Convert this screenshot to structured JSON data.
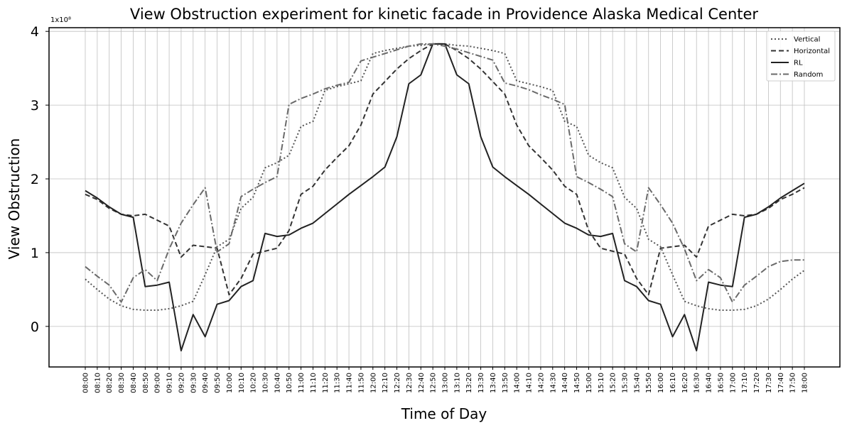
{
  "chart_data": {
    "type": "line",
    "title": "View Obstruction experiment for kinetic facade in Providence Alaska Medical Center",
    "xlabel": "Time of Day",
    "ylabel": "View Obstruction",
    "y_scale_label": "1x10⁸",
    "y_ticks": [
      "0",
      "1",
      "2",
      "3",
      "4"
    ],
    "ylim": [
      -0.55,
      4.05
    ],
    "grid": true,
    "legend_position": "top-right",
    "categories": [
      "08:00",
      "08:10",
      "08:20",
      "08:30",
      "08:40",
      "08:50",
      "09:00",
      "09:10",
      "09:20",
      "09:30",
      "09:40",
      "09:50",
      "10:00",
      "10:10",
      "10:20",
      "10:30",
      "10:40",
      "10:50",
      "11:00",
      "11:10",
      "11:20",
      "11:30",
      "11:40",
      "11:50",
      "12:00",
      "12:10",
      "12:20",
      "12:30",
      "12:40",
      "12:50",
      "13:00",
      "13:10",
      "13:20",
      "13:30",
      "13:40",
      "13:50",
      "14:00",
      "14:10",
      "14:20",
      "14:30",
      "14:40",
      "14:50",
      "15:00",
      "15:10",
      "15:20",
      "15:30",
      "15:40",
      "15:50",
      "16:00",
      "16:10",
      "16:20",
      "16:30",
      "16:40",
      "16:50",
      "17:00",
      "17:10",
      "17:20",
      "17:30",
      "17:40",
      "17:50",
      "18:00"
    ],
    "series": [
      {
        "name": "Vertical",
        "color": "#555555",
        "dash": "2,3",
        "values": [
          0.64,
          0.5,
          0.37,
          0.28,
          0.23,
          0.22,
          0.22,
          0.24,
          0.28,
          0.34,
          0.7,
          1.08,
          1.18,
          1.6,
          1.75,
          2.15,
          2.22,
          2.32,
          2.71,
          2.78,
          3.2,
          3.25,
          3.29,
          3.33,
          3.7,
          3.74,
          3.77,
          3.8,
          3.81,
          3.83,
          3.83,
          3.81,
          3.8,
          3.77,
          3.74,
          3.7,
          3.33,
          3.29,
          3.25,
          3.2,
          2.78,
          2.71,
          2.32,
          2.22,
          2.15,
          1.75,
          1.6,
          1.18,
          1.08,
          0.7,
          0.34,
          0.28,
          0.24,
          0.22,
          0.22,
          0.23,
          0.28,
          0.37,
          0.5,
          0.64,
          0.76
        ]
      },
      {
        "name": "Horizontal",
        "color": "#333333",
        "dash": "7,4",
        "values": [
          1.79,
          1.72,
          1.6,
          1.52,
          1.5,
          1.52,
          1.44,
          1.36,
          0.94,
          1.1,
          1.08,
          1.06,
          0.43,
          0.65,
          0.98,
          1.02,
          1.06,
          1.3,
          1.79,
          1.9,
          2.12,
          2.29,
          2.45,
          2.73,
          3.15,
          3.32,
          3.49,
          3.63,
          3.74,
          3.83,
          3.83,
          3.74,
          3.63,
          3.49,
          3.32,
          3.15,
          2.73,
          2.45,
          2.29,
          2.12,
          1.9,
          1.79,
          1.3,
          1.06,
          1.02,
          0.98,
          0.65,
          0.43,
          1.06,
          1.08,
          1.1,
          0.94,
          1.36,
          1.44,
          1.52,
          1.5,
          1.52,
          1.6,
          1.72,
          1.79,
          1.88
        ]
      },
      {
        "name": "RL",
        "color": "#222222",
        "dash": "",
        "values": [
          1.84,
          1.74,
          1.62,
          1.52,
          1.48,
          0.54,
          0.56,
          0.6,
          -0.33,
          0.16,
          -0.14,
          0.3,
          0.35,
          0.54,
          0.62,
          1.26,
          1.22,
          1.24,
          1.33,
          1.4,
          1.53,
          1.66,
          1.79,
          1.91,
          2.03,
          2.16,
          2.57,
          3.29,
          3.41,
          3.83,
          3.83,
          3.41,
          3.29,
          2.57,
          2.16,
          2.03,
          1.91,
          1.79,
          1.66,
          1.53,
          1.4,
          1.33,
          1.24,
          1.22,
          1.26,
          0.62,
          0.54,
          0.35,
          0.3,
          -0.14,
          0.16,
          -0.33,
          0.6,
          0.56,
          0.54,
          1.48,
          1.52,
          1.62,
          1.74,
          1.84,
          1.94
        ]
      },
      {
        "name": "Random",
        "color": "#6a6a6a",
        "dash": "9,3,2,3",
        "values": [
          0.81,
          0.68,
          0.56,
          0.33,
          0.66,
          0.77,
          0.62,
          1.05,
          1.4,
          1.65,
          1.88,
          1.01,
          1.12,
          1.76,
          1.86,
          1.95,
          2.03,
          3.01,
          3.09,
          3.15,
          3.22,
          3.27,
          3.31,
          3.6,
          3.65,
          3.7,
          3.75,
          3.8,
          3.83,
          3.83,
          3.8,
          3.76,
          3.71,
          3.66,
          3.61,
          3.3,
          3.26,
          3.21,
          3.14,
          3.08,
          3.01,
          2.03,
          1.95,
          1.86,
          1.76,
          1.12,
          1.01,
          1.88,
          1.65,
          1.4,
          1.05,
          0.62,
          0.77,
          0.66,
          0.33,
          0.56,
          0.68,
          0.81,
          0.88,
          0.9,
          0.9
        ]
      }
    ]
  }
}
